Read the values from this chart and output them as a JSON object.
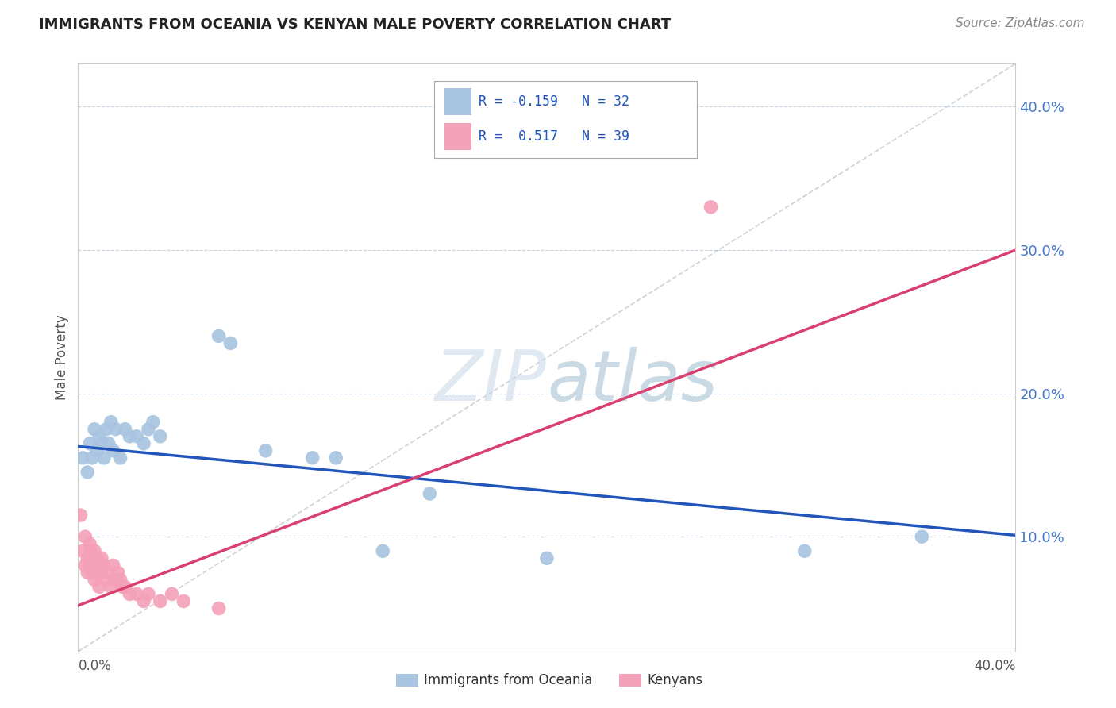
{
  "title": "IMMIGRANTS FROM OCEANIA VS KENYAN MALE POVERTY CORRELATION CHART",
  "source": "Source: ZipAtlas.com",
  "ylabel": "Male Poverty",
  "r_oceania": -0.159,
  "n_oceania": 32,
  "r_kenyan": 0.517,
  "n_kenyan": 39,
  "xmin": 0.0,
  "xmax": 0.4,
  "ymin": 0.02,
  "ymax": 0.43,
  "yticks": [
    0.1,
    0.2,
    0.3,
    0.4
  ],
  "color_oceania": "#a8c4e0",
  "color_kenyan": "#f4a0b8",
  "line_color_oceania": "#2255bb",
  "line_color_kenyan": "#d94070",
  "diagonal_color": "#c0c8d0",
  "oceania_points": [
    [
      0.002,
      0.155
    ],
    [
      0.004,
      0.145
    ],
    [
      0.005,
      0.165
    ],
    [
      0.006,
      0.155
    ],
    [
      0.007,
      0.175
    ],
    [
      0.008,
      0.16
    ],
    [
      0.009,
      0.17
    ],
    [
      0.01,
      0.165
    ],
    [
      0.011,
      0.155
    ],
    [
      0.012,
      0.175
    ],
    [
      0.013,
      0.165
    ],
    [
      0.014,
      0.18
    ],
    [
      0.015,
      0.16
    ],
    [
      0.016,
      0.175
    ],
    [
      0.018,
      0.155
    ],
    [
      0.02,
      0.175
    ],
    [
      0.022,
      0.17
    ],
    [
      0.025,
      0.17
    ],
    [
      0.028,
      0.165
    ],
    [
      0.03,
      0.175
    ],
    [
      0.032,
      0.18
    ],
    [
      0.035,
      0.17
    ],
    [
      0.06,
      0.24
    ],
    [
      0.065,
      0.235
    ],
    [
      0.08,
      0.16
    ],
    [
      0.1,
      0.155
    ],
    [
      0.11,
      0.155
    ],
    [
      0.13,
      0.09
    ],
    [
      0.15,
      0.13
    ],
    [
      0.2,
      0.085
    ],
    [
      0.31,
      0.09
    ],
    [
      0.36,
      0.1
    ]
  ],
  "kenyan_points": [
    [
      0.001,
      0.115
    ],
    [
      0.002,
      0.09
    ],
    [
      0.003,
      0.08
    ],
    [
      0.003,
      0.1
    ],
    [
      0.004,
      0.075
    ],
    [
      0.004,
      0.085
    ],
    [
      0.005,
      0.09
    ],
    [
      0.005,
      0.08
    ],
    [
      0.005,
      0.095
    ],
    [
      0.006,
      0.075
    ],
    [
      0.006,
      0.085
    ],
    [
      0.007,
      0.08
    ],
    [
      0.007,
      0.07
    ],
    [
      0.007,
      0.09
    ],
    [
      0.008,
      0.075
    ],
    [
      0.008,
      0.085
    ],
    [
      0.009,
      0.08
    ],
    [
      0.009,
      0.065
    ],
    [
      0.01,
      0.075
    ],
    [
      0.01,
      0.085
    ],
    [
      0.011,
      0.08
    ],
    [
      0.012,
      0.07
    ],
    [
      0.013,
      0.075
    ],
    [
      0.014,
      0.065
    ],
    [
      0.015,
      0.08
    ],
    [
      0.016,
      0.07
    ],
    [
      0.017,
      0.075
    ],
    [
      0.018,
      0.07
    ],
    [
      0.019,
      0.065
    ],
    [
      0.02,
      0.065
    ],
    [
      0.022,
      0.06
    ],
    [
      0.025,
      0.06
    ],
    [
      0.028,
      0.055
    ],
    [
      0.03,
      0.06
    ],
    [
      0.035,
      0.055
    ],
    [
      0.04,
      0.06
    ],
    [
      0.045,
      0.055
    ],
    [
      0.06,
      0.05
    ],
    [
      0.27,
      0.33
    ]
  ],
  "oceania_line": [
    0.0,
    0.4,
    0.163,
    0.101
  ],
  "kenyan_line": [
    0.0,
    0.4,
    0.052,
    0.3
  ]
}
